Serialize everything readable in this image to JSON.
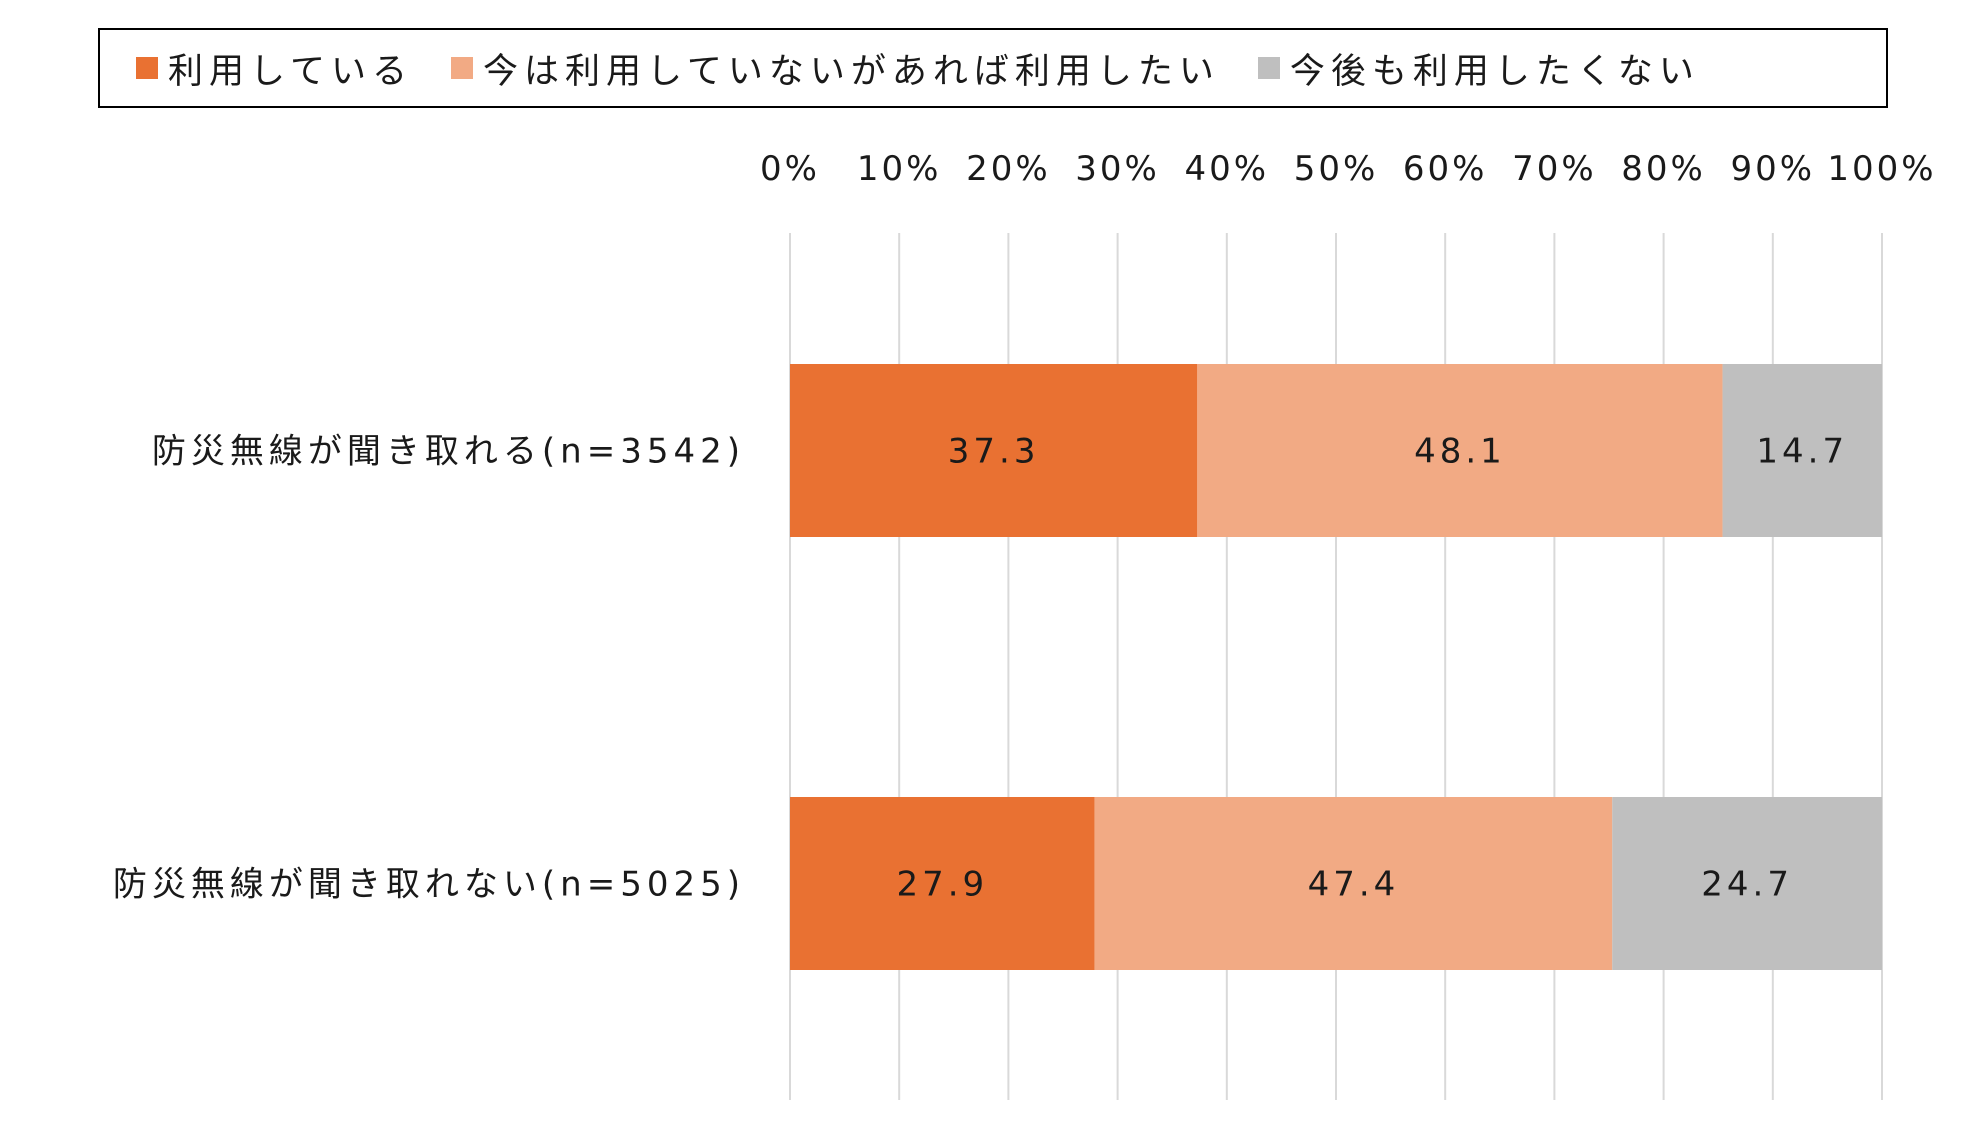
{
  "chart_data": {
    "type": "bar",
    "orientation": "horizontal",
    "stacked": true,
    "categories": [
      "防災無線が聞き取れる(n=3542)",
      "防災無線が聞き取れない(n=5025)"
    ],
    "series": [
      {
        "name": "利用している",
        "color": "#E97132",
        "values": [
          37.3,
          27.9
        ]
      },
      {
        "name": "今は利用していないがあれば利用したい",
        "color": "#F2AA84",
        "values": [
          48.1,
          47.4
        ]
      },
      {
        "name": "今後も利用したくない",
        "color": "#BFBFBF",
        "values": [
          14.7,
          24.7
        ]
      }
    ],
    "xlim": [
      0,
      100
    ],
    "xticks": [
      "0%",
      "10%",
      "20%",
      "30%",
      "40%",
      "50%",
      "60%",
      "70%",
      "80%",
      "90%",
      "100%"
    ],
    "grid": true,
    "gridline_color": "#D9D9D9",
    "legend_position": "top",
    "title": "",
    "xlabel": "",
    "ylabel": ""
  }
}
